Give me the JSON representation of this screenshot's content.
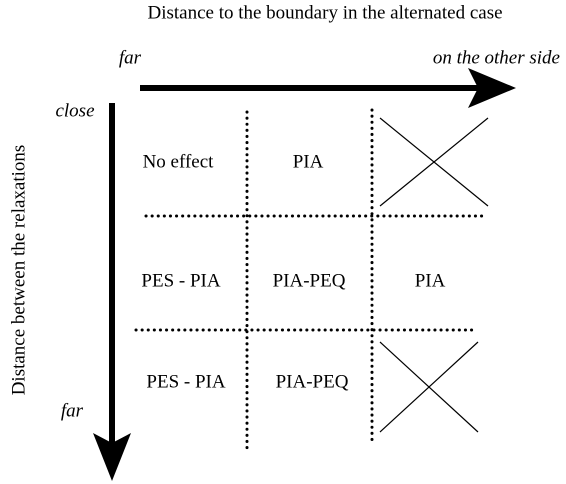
{
  "title": "Distance to the boundary in the alternated case",
  "horizontal_axis": {
    "start": "far",
    "end": "on the other side"
  },
  "vertical_axis": {
    "label": "Distance between the relaxations",
    "start": "close",
    "end": "far"
  },
  "grid": {
    "rows": [
      [
        "No effect",
        "PIA",
        null
      ],
      [
        "PES - PIA",
        "PIA-PEQ",
        "PIA"
      ],
      [
        "PES - PIA",
        "PIA-PEQ",
        null
      ]
    ]
  }
}
